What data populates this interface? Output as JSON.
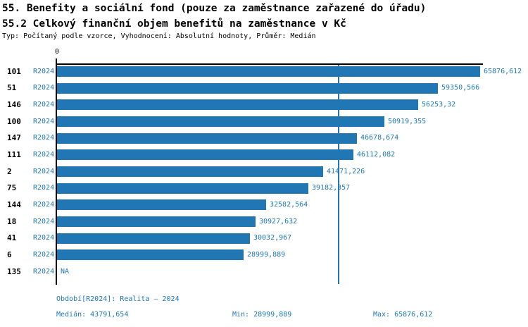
{
  "header": {
    "title1": "55. Benefity a sociální fond (pouze za zaměstnance zařazené do úřadu)",
    "title2": "55.2 Celkový finanční objem benefitů na zaměstnance v Kč",
    "subtitle": "Typ: Počítaný podle vzorce, Vyhodnocení: Absolutní hodnoty, Průměr: Medián"
  },
  "chart_data": {
    "type": "bar",
    "orientation": "horizontal",
    "title": "",
    "xlabel": "",
    "ylabel": "",
    "grid": false,
    "x_axis": {
      "ticks": [
        "0"
      ],
      "range": [
        0,
        65876.612
      ]
    },
    "series_label": "R2024",
    "categories": [
      "101",
      "51",
      "146",
      "100",
      "147",
      "111",
      "2",
      "75",
      "144",
      "18",
      "41",
      "6",
      "135"
    ],
    "values": [
      65876.612,
      59350.566,
      56253.32,
      50919.355,
      46678.674,
      46112.082,
      41471.226,
      39182.357,
      32582.564,
      30927.632,
      30032.967,
      28999.889,
      null
    ],
    "value_labels": [
      "65876,612",
      "59350,566",
      "56253,32",
      "50919,355",
      "46678,674",
      "46112,082",
      "41471,226",
      "39182,357",
      "32582,564",
      "30927,632",
      "30032,967",
      "28999,889",
      "NA"
    ],
    "median_value": 43791.654,
    "colors": {
      "bar": "#2077b4",
      "axis": "#000000",
      "median_line": "#2077b4",
      "value_label": "#2077b4",
      "series_label": "#2077b4",
      "category_label": "#000000"
    }
  },
  "footer": {
    "period": "Období[R2024]: Realita – 2024",
    "median": "Medián: 43791,654",
    "min": "Min: 28999,889",
    "max": "Max: 65876,612"
  }
}
